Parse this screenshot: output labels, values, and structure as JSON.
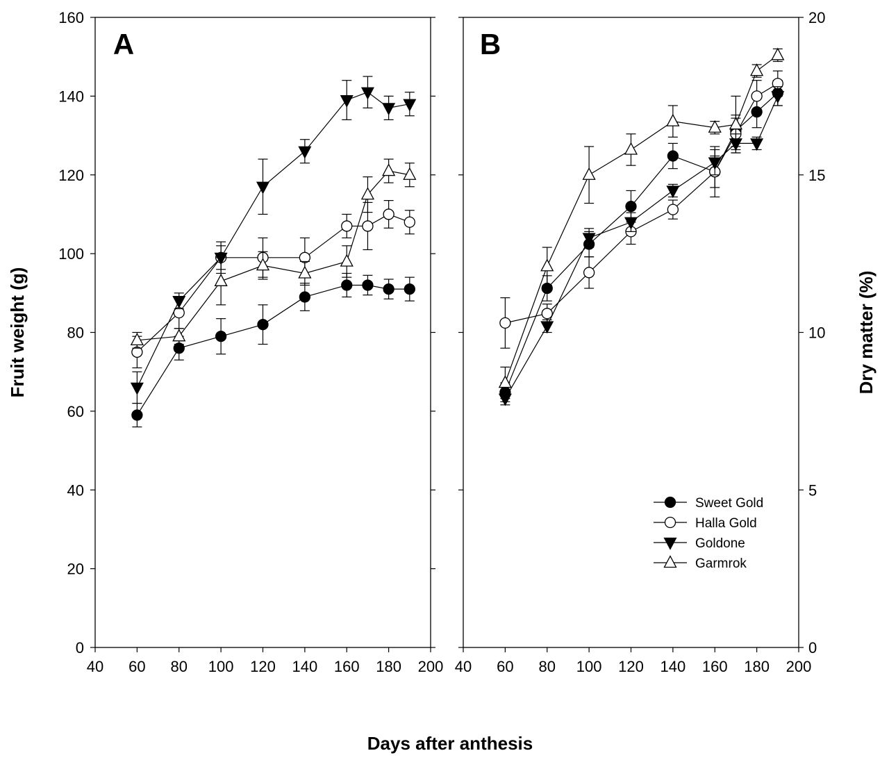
{
  "figure": {
    "xlabel": "Days after anthesis",
    "legend": {
      "placement": "lower-right of panel B",
      "entries": [
        {
          "name": "Sweet Gold",
          "marker": "filled-circle"
        },
        {
          "name": "Halla Gold",
          "marker": "open-circle"
        },
        {
          "name": "Goldone",
          "marker": "filled-triangle-down"
        },
        {
          "name": "Garmrok",
          "marker": "open-triangle-up"
        }
      ]
    }
  },
  "chart_data": [
    {
      "panel": "A",
      "type": "line",
      "ylabel": "Fruit weight (g)",
      "xlim": [
        40,
        200
      ],
      "ylim": [
        0,
        160
      ],
      "xticks": [
        40,
        60,
        80,
        100,
        120,
        140,
        160,
        180,
        200
      ],
      "yticks": [
        0,
        20,
        40,
        60,
        80,
        100,
        120,
        140,
        160
      ],
      "y_axis_side": "left",
      "grid": false,
      "x": [
        60,
        80,
        100,
        120,
        140,
        160,
        170,
        180,
        190
      ],
      "series": [
        {
          "name": "Sweet Gold",
          "marker": "filled-circle",
          "values": [
            59,
            76,
            79,
            82,
            89,
            92,
            92,
            91,
            91
          ],
          "errors": [
            3,
            3,
            4.5,
            5,
            3.5,
            3,
            2.5,
            2.5,
            3
          ]
        },
        {
          "name": "Halla Gold",
          "marker": "open-circle",
          "values": [
            75,
            85,
            99,
            99,
            99,
            107,
            107,
            110,
            108
          ],
          "errors": [
            4,
            4,
            4,
            5,
            5,
            3,
            6,
            3.5,
            3
          ]
        },
        {
          "name": "Goldone",
          "marker": "filled-triangle-down",
          "values": [
            66,
            88,
            99,
            117,
            126,
            139,
            141,
            137,
            138
          ],
          "errors": [
            4,
            2,
            3,
            7,
            3,
            5,
            4,
            3,
            3
          ]
        },
        {
          "name": "Garmrok",
          "marker": "open-triangle-up",
          "values": [
            78,
            79,
            93,
            97,
            95,
            98,
            115,
            121,
            120
          ],
          "errors": [
            2,
            2,
            6,
            3.5,
            3,
            4,
            4.5,
            3,
            3
          ]
        }
      ]
    },
    {
      "panel": "B",
      "type": "line",
      "ylabel": "Dry matter (%)",
      "xlim": [
        40,
        200
      ],
      "ylim": [
        0,
        20
      ],
      "xticks": [
        40,
        60,
        80,
        100,
        120,
        140,
        160,
        180,
        200
      ],
      "yticks": [
        0,
        5,
        10,
        15,
        20
      ],
      "y_axis_side": "right",
      "grid": false,
      "x": [
        60,
        80,
        100,
        120,
        140,
        160,
        170,
        180,
        190
      ],
      "series": [
        {
          "name": "Sweet Gold",
          "marker": "filled-circle",
          "values": [
            8.1,
            11.4,
            12.8,
            14.0,
            15.6,
            15.1,
            16.4,
            17.0,
            17.6
          ],
          "errors": [
            0.3,
            0.4,
            0.4,
            0.5,
            0.4,
            0.5,
            0.5,
            0.5,
            0.4
          ]
        },
        {
          "name": "Halla Gold",
          "marker": "open-circle",
          "values": [
            10.3,
            10.6,
            11.9,
            13.2,
            13.9,
            15.1,
            16.3,
            17.5,
            17.9
          ],
          "errors": [
            0.8,
            0.3,
            0.5,
            0.4,
            0.3,
            0.8,
            0.5,
            0.5,
            0.4
          ]
        },
        {
          "name": "Goldone",
          "marker": "filled-triangle-down",
          "values": [
            7.9,
            10.2,
            13.0,
            13.5,
            14.5,
            15.4,
            16.0,
            16.0,
            17.5
          ],
          "errors": [
            0.2,
            0.2,
            0.3,
            0.3,
            0.2,
            0.4,
            0.3,
            0.2,
            0.3
          ]
        },
        {
          "name": "Garmrok",
          "marker": "open-triangle-up",
          "values": [
            8.4,
            12.1,
            15.0,
            15.8,
            16.7,
            16.5,
            16.6,
            18.3,
            18.8
          ],
          "errors": [
            0.5,
            0.6,
            0.9,
            0.5,
            0.5,
            0.2,
            0.9,
            0.2,
            0.2
          ]
        }
      ]
    }
  ]
}
